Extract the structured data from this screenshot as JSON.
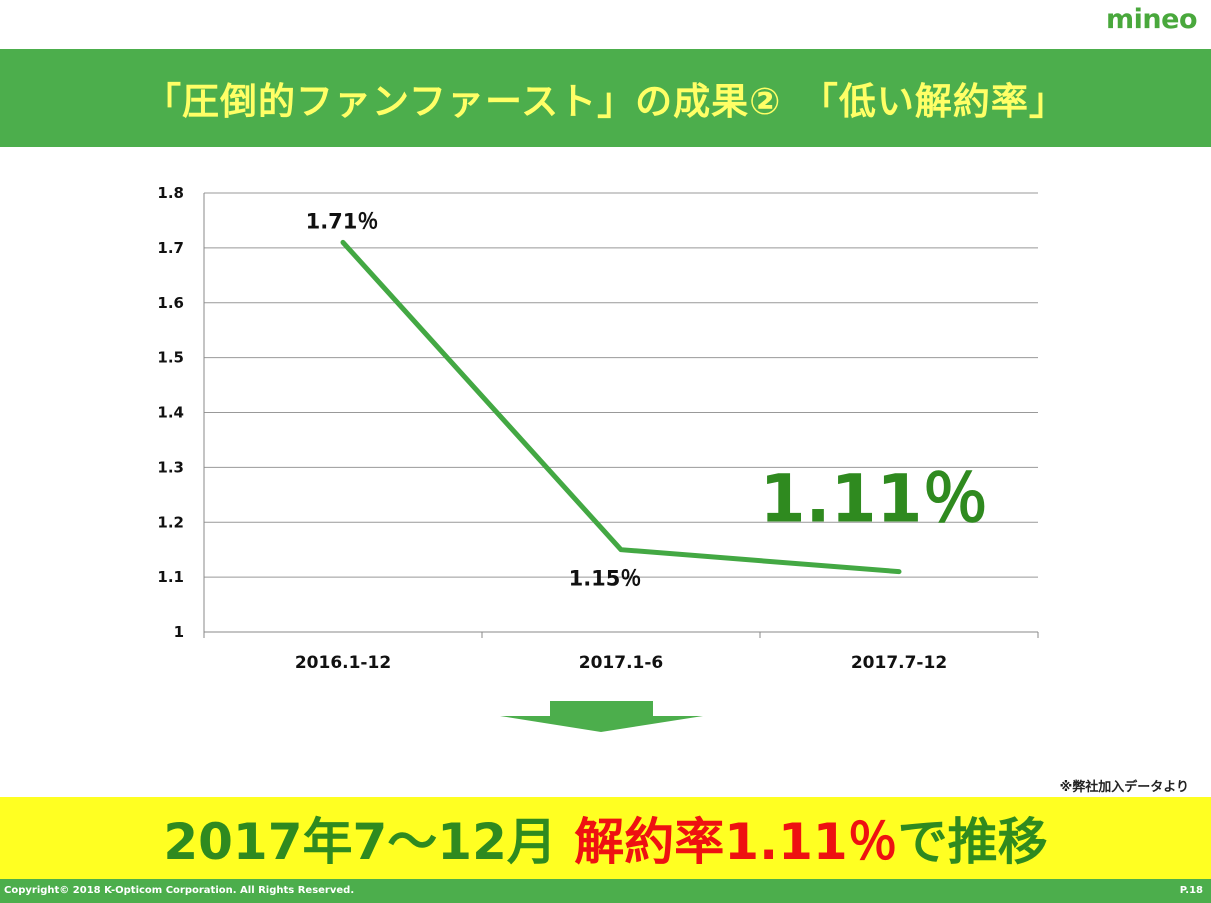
{
  "logo": "mineo",
  "title": "「圧倒的ファンファースト」の成果②　「低い解約率」",
  "chart_data": {
    "type": "line",
    "categories": [
      "2016.1-12",
      "2017.1-6",
      "2017.7-12"
    ],
    "values": [
      1.71,
      1.15,
      1.11
    ],
    "data_labels": [
      "1.71％",
      "1.15％",
      "1.11％"
    ],
    "yticks": [
      "1.8",
      "1.7",
      "1.6",
      "1.5",
      "1.4",
      "1.3",
      "1.2",
      "1.1",
      "1"
    ],
    "ylim": [
      1,
      1.8
    ],
    "grid": true,
    "line_color": "#43a843",
    "highlight_color": "#2f8a1f"
  },
  "source_note": "※弊社加入データより",
  "summary": {
    "part1": "2017年7～12月 ",
    "part2": "解約率1.11％",
    "part3": "で推移"
  },
  "footer": {
    "copyright": "Copyright© 2018 K-Opticom Corporation. All Rights Reserved.",
    "page": "P.18"
  }
}
